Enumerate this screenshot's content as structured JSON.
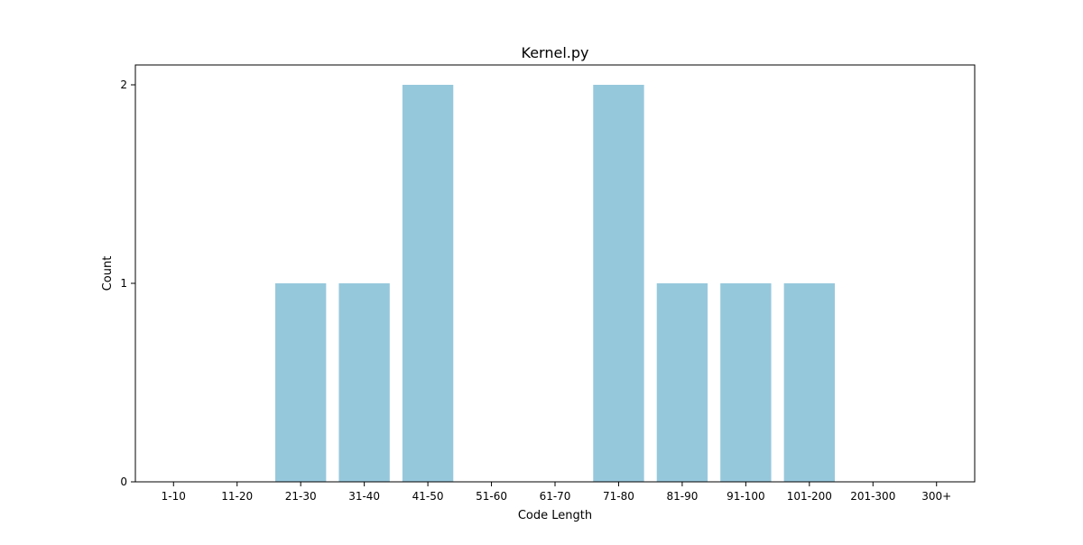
{
  "chart_data": {
    "type": "bar",
    "title": "Kernel.py",
    "xlabel": "Code Length",
    "ylabel": "Count",
    "categories": [
      "1-10",
      "11-20",
      "21-30",
      "31-40",
      "41-50",
      "51-60",
      "61-70",
      "71-80",
      "81-90",
      "91-100",
      "101-200",
      "201-300",
      "300+"
    ],
    "values": [
      0,
      0,
      1,
      1,
      2,
      0,
      0,
      2,
      1,
      1,
      1,
      0,
      0
    ],
    "ylim": [
      0,
      2.1
    ],
    "yticks": [
      0,
      1,
      2
    ],
    "grid": false,
    "bar_color": "#96c8dc"
  }
}
